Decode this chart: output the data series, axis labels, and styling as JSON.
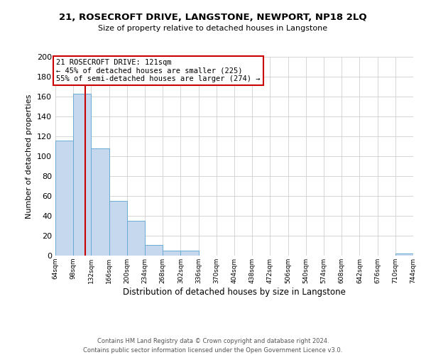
{
  "title": "21, ROSECROFT DRIVE, LANGSTONE, NEWPORT, NP18 2LQ",
  "subtitle": "Size of property relative to detached houses in Langstone",
  "xlabel": "Distribution of detached houses by size in Langstone",
  "ylabel": "Number of detached properties",
  "bar_edges": [
    64,
    98,
    132,
    166,
    200,
    234,
    268,
    302,
    336,
    370,
    404,
    438,
    472,
    506,
    540,
    574,
    608,
    642,
    676,
    710,
    744
  ],
  "bar_heights": [
    116,
    163,
    108,
    55,
    35,
    11,
    5,
    5,
    0,
    0,
    0,
    0,
    0,
    0,
    0,
    0,
    0,
    0,
    0,
    2
  ],
  "bar_color": "#c5d8ee",
  "bar_edge_color": "#6aaad4",
  "vline_color": "#cc0000",
  "vline_x": 121,
  "annotation_title": "21 ROSECROFT DRIVE: 121sqm",
  "annotation_line1": "← 45% of detached houses are smaller (225)",
  "annotation_line2": "55% of semi-detached houses are larger (274) →",
  "annotation_box_facecolor": "#ffffff",
  "annotation_box_edgecolor": "#cc0000",
  "ylim": [
    0,
    200
  ],
  "yticks": [
    0,
    20,
    40,
    60,
    80,
    100,
    120,
    140,
    160,
    180,
    200
  ],
  "tick_labels": [
    "64sqm",
    "98sqm",
    "132sqm",
    "166sqm",
    "200sqm",
    "234sqm",
    "268sqm",
    "302sqm",
    "336sqm",
    "370sqm",
    "404sqm",
    "438sqm",
    "472sqm",
    "506sqm",
    "540sqm",
    "574sqm",
    "608sqm",
    "642sqm",
    "676sqm",
    "710sqm",
    "744sqm"
  ],
  "footer_line1": "Contains HM Land Registry data © Crown copyright and database right 2024.",
  "footer_line2": "Contains public sector information licensed under the Open Government Licence v3.0.",
  "background_color": "#ffffff",
  "grid_color": "#d0d0d0",
  "title_fontsize": 9.5,
  "subtitle_fontsize": 8.0,
  "ylabel_fontsize": 8.0,
  "xlabel_fontsize": 8.5,
  "ytick_fontsize": 8.0,
  "xtick_fontsize": 6.5,
  "footer_fontsize": 6.0,
  "annotation_fontsize": 7.5
}
